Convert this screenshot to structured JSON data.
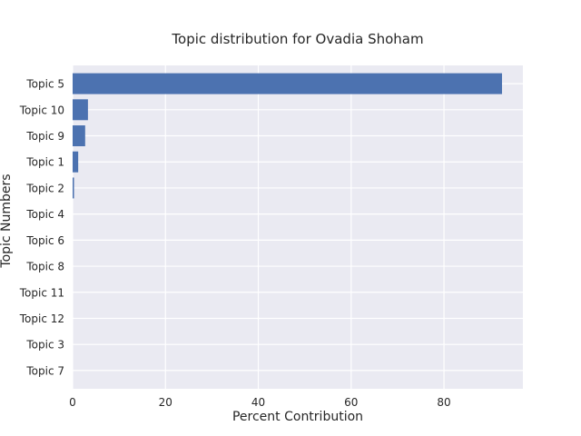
{
  "chart_data": {
    "type": "bar",
    "orientation": "horizontal",
    "title": "Topic distribution for Ovadia Shoham",
    "xlabel": "Percent Contribution",
    "ylabel": "Topic Numbers",
    "categories": [
      "Topic 5",
      "Topic 10",
      "Topic 9",
      "Topic 1",
      "Topic 2",
      "Topic 4",
      "Topic 6",
      "Topic 8",
      "Topic 11",
      "Topic 12",
      "Topic 3",
      "Topic 7"
    ],
    "values": [
      92.5,
      3.3,
      2.7,
      1.2,
      0.3,
      0,
      0,
      0,
      0,
      0,
      0,
      0
    ],
    "xlim": [
      0,
      97
    ],
    "xticks": [
      0,
      20,
      40,
      60,
      80
    ],
    "grid": true,
    "colors": {
      "bar": "#4c72b0",
      "background": "#eaeaf2",
      "grid": "#ffffff"
    }
  }
}
